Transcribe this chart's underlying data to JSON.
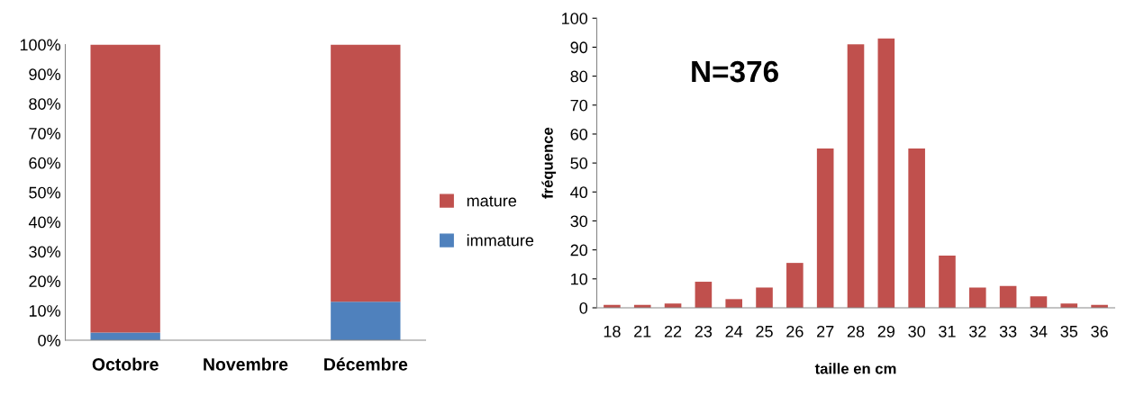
{
  "chart_data": [
    {
      "type": "bar",
      "stacked": true,
      "categories": [
        "Octobre",
        "Novembre",
        "Décembre"
      ],
      "ylim": [
        0,
        100
      ],
      "yticks": [
        {
          "value": 0,
          "label": "0%"
        },
        {
          "value": 10,
          "label": "10%"
        },
        {
          "value": 20,
          "label": "20%"
        },
        {
          "value": 30,
          "label": "30%"
        },
        {
          "value": 40,
          "label": "40%"
        },
        {
          "value": 50,
          "label": "50%"
        },
        {
          "value": 60,
          "label": "60%"
        },
        {
          "value": 70,
          "label": "70%"
        },
        {
          "value": 80,
          "label": "80%"
        },
        {
          "value": 90,
          "label": "90%"
        },
        {
          "value": 100,
          "label": "100%"
        }
      ],
      "grid": false,
      "legend": "right",
      "series": [
        {
          "name": "immature",
          "color": "#4f81bd",
          "values": [
            2.6,
            null,
            13
          ]
        },
        {
          "name": "mature",
          "color": "#c0504d",
          "values": [
            97.4,
            null,
            87
          ]
        }
      ]
    },
    {
      "type": "bar",
      "categories": [
        "18",
        "21",
        "22",
        "23",
        "24",
        "25",
        "26",
        "27",
        "28",
        "29",
        "30",
        "31",
        "32",
        "33",
        "34",
        "35",
        "36"
      ],
      "xlabel": "taille en cm",
      "ylabel": "fréquence",
      "ylim": [
        0,
        100
      ],
      "yticks": [
        0,
        10,
        20,
        30,
        40,
        50,
        60,
        70,
        80,
        90,
        100
      ],
      "grid": false,
      "legend": false,
      "annotations": [
        "N=376"
      ],
      "series": [
        {
          "color": "#c0504d",
          "values": [
            1,
            1,
            1.5,
            9,
            3,
            7,
            15.5,
            55,
            91,
            93,
            55,
            18,
            7,
            7.5,
            4,
            1.5,
            1
          ]
        }
      ]
    }
  ]
}
